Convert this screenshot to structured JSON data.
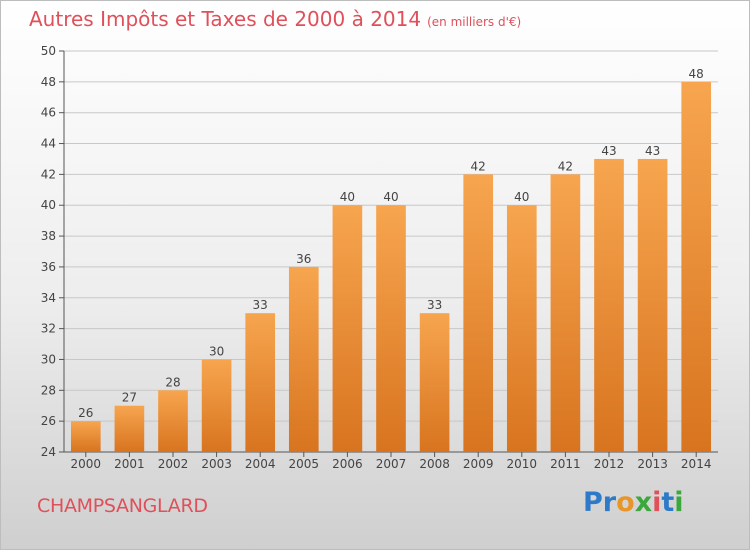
{
  "header": {
    "title": "Autres Impôts et Taxes de 2000 à 2014",
    "unit": "(en milliers d'€)"
  },
  "footer": {
    "commune": "CHAMPSANGLARD",
    "logo_letters": [
      {
        "ch": "P",
        "color": "#2f7ac8"
      },
      {
        "ch": "r",
        "color": "#2f7ac8"
      },
      {
        "ch": "o",
        "color": "#e8962a"
      },
      {
        "ch": "x",
        "color": "#3aa83a"
      },
      {
        "ch": "i",
        "color": "#e0505a"
      },
      {
        "ch": "t",
        "color": "#2f7ac8"
      },
      {
        "ch": "i",
        "color": "#3aa83a"
      }
    ]
  },
  "colors": {
    "bar_top": "#f7a54f",
    "bar_bottom": "#d8741f",
    "title": "#e0505a",
    "grid": "#c8c8c8"
  },
  "chart_data": {
    "type": "bar",
    "title": "Autres Impôts et Taxes de 2000 à 2014",
    "subtitle": "(en milliers d'€)",
    "xlabel": "",
    "ylabel": "",
    "categories": [
      "2000",
      "2001",
      "2002",
      "2003",
      "2004",
      "2005",
      "2006",
      "2007",
      "2008",
      "2009",
      "2010",
      "2011",
      "2012",
      "2013",
      "2014"
    ],
    "values": [
      26,
      27,
      28,
      30,
      33,
      36,
      40,
      40,
      33,
      42,
      40,
      42,
      43,
      43,
      48
    ],
    "ylim": [
      24,
      50
    ],
    "yticks": [
      24,
      26,
      28,
      30,
      32,
      34,
      36,
      38,
      40,
      42,
      44,
      46,
      48,
      50
    ],
    "grid": true
  }
}
